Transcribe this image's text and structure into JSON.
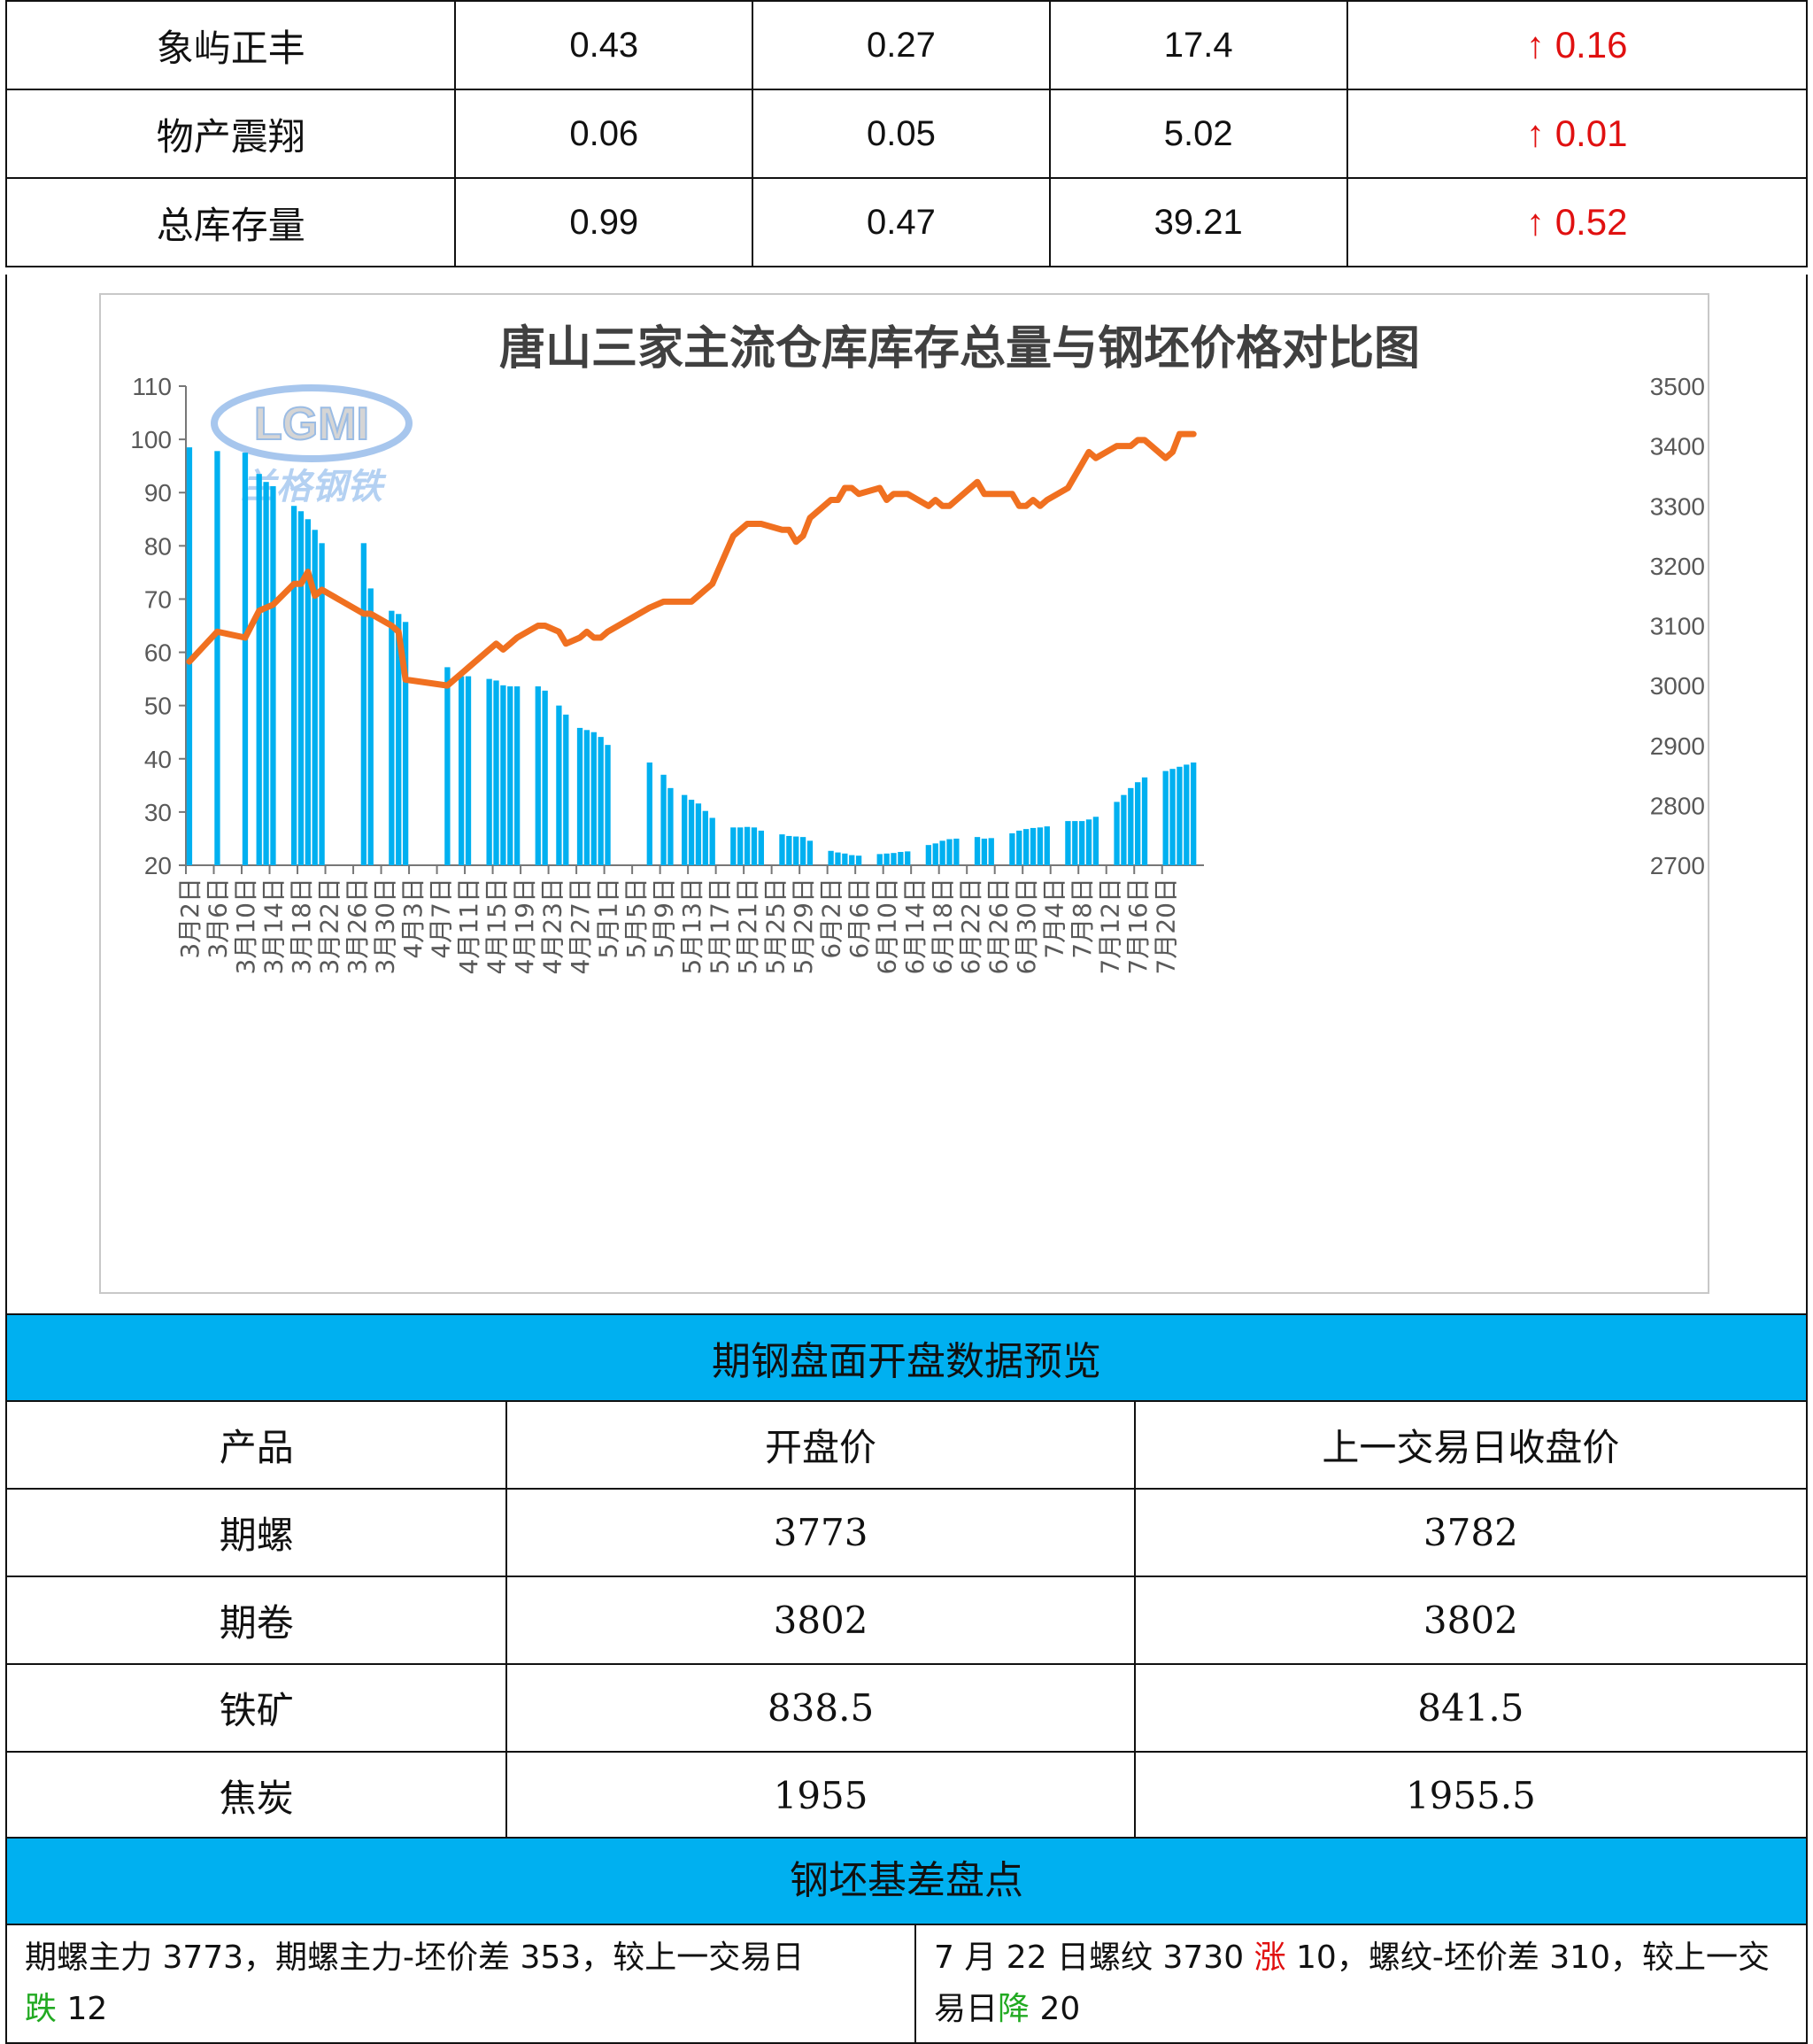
{
  "inventory_table": {
    "rows": [
      {
        "name": "象屿正丰",
        "c1": "0.43",
        "c2": "0.27",
        "c3": "17.4",
        "change": "↑ 0.16"
      },
      {
        "name": "物产震翔",
        "c1": "0.06",
        "c2": "0.05",
        "c3": "5.02",
        "change": "↑ 0.01"
      },
      {
        "name": "总库存量",
        "c1": "0.99",
        "c2": "0.47",
        "c3": "39.21",
        "change": "↑ 0.52"
      }
    ]
  },
  "logo": {
    "text": "LGMI",
    "subtext": "兰格钢铁"
  },
  "chart_data": {
    "type": "bar+line",
    "title": "唐山三家主流仓库库存总量与钢坯价格对比图",
    "y_left": {
      "min": 20,
      "max": 110,
      "ticks": [
        20,
        30,
        40,
        50,
        60,
        70,
        80,
        90,
        100,
        110
      ]
    },
    "y_right": {
      "min": 2700,
      "max": 3500,
      "ticks": [
        2700,
        2800,
        2900,
        3000,
        3100,
        3200,
        3300,
        3400,
        3500
      ]
    },
    "x_tick_labels": [
      "3月2日",
      "3月6日",
      "3月10日",
      "3月14日",
      "3月18日",
      "3月22日",
      "3月26日",
      "3月30日",
      "4月3日",
      "4月7日",
      "4月11日",
      "4月15日",
      "4月19日",
      "4月23日",
      "4月27日",
      "5月1日",
      "5月5日",
      "5月9日",
      "5月13日",
      "5月17日",
      "5月21日",
      "5月25日",
      "5月29日",
      "6月2日",
      "6月6日",
      "6月10日",
      "6月14日",
      "6月18日",
      "6月22日",
      "6月26日",
      "6月30日",
      "7月4日",
      "7月8日",
      "7月12日",
      "7月16日",
      "7月20日"
    ],
    "bar_series": {
      "color": "#00b0f0",
      "points": [
        [
          0,
          98.5
        ],
        [
          4,
          97.8
        ],
        [
          8,
          97.5
        ],
        [
          10,
          93.5
        ],
        [
          11,
          92
        ],
        [
          12,
          91.2
        ],
        [
          15,
          87.5
        ],
        [
          16,
          86.5
        ],
        [
          17,
          85
        ],
        [
          18,
          83
        ],
        [
          19,
          80.5
        ],
        [
          25,
          80.5
        ],
        [
          26,
          72
        ],
        [
          29,
          67.8
        ],
        [
          30,
          67.2
        ],
        [
          31,
          65.7
        ],
        [
          37,
          57.2
        ],
        [
          39,
          55.5
        ],
        [
          40,
          55.5
        ],
        [
          43,
          55
        ],
        [
          44,
          54.7
        ],
        [
          45,
          53.8
        ],
        [
          46,
          53.6
        ],
        [
          47,
          53.6
        ],
        [
          50,
          53.6
        ],
        [
          51,
          52.8
        ],
        [
          53,
          50
        ],
        [
          54,
          48.3
        ],
        [
          56,
          45.8
        ],
        [
          57,
          45.4
        ],
        [
          58,
          45
        ],
        [
          59,
          44.1
        ],
        [
          60,
          42.6
        ],
        [
          66,
          39.3
        ],
        [
          68,
          37
        ],
        [
          69,
          34.5
        ],
        [
          71,
          33.2
        ],
        [
          72,
          32.3
        ],
        [
          73,
          31.6
        ],
        [
          74,
          30.2
        ],
        [
          75,
          28.9
        ],
        [
          78,
          27.1
        ],
        [
          79,
          27.1
        ],
        [
          80,
          27.2
        ],
        [
          81,
          27.1
        ],
        [
          82,
          26.5
        ],
        [
          85,
          25.8
        ],
        [
          86,
          25.5
        ],
        [
          87,
          25.4
        ],
        [
          88,
          25.3
        ],
        [
          89,
          24.6
        ],
        [
          92,
          22.7
        ],
        [
          93,
          22.4
        ],
        [
          94,
          22.2
        ],
        [
          95,
          21.9
        ],
        [
          96,
          21.8
        ],
        [
          99,
          22.1
        ],
        [
          100,
          22.2
        ],
        [
          101,
          22.3
        ],
        [
          102,
          22.5
        ],
        [
          103,
          22.6
        ],
        [
          106,
          23.8
        ],
        [
          107,
          24.1
        ],
        [
          108,
          24.6
        ],
        [
          109,
          24.9
        ],
        [
          110,
          25
        ],
        [
          113,
          25.3
        ],
        [
          114,
          25
        ],
        [
          115,
          25.1
        ],
        [
          118,
          26
        ],
        [
          119,
          26.5
        ],
        [
          120,
          26.8
        ],
        [
          121,
          27
        ],
        [
          122,
          27.1
        ],
        [
          123,
          27.3
        ],
        [
          126,
          28.3
        ],
        [
          127,
          28.3
        ],
        [
          128,
          28.3
        ],
        [
          129,
          28.6
        ],
        [
          130,
          29.1
        ],
        [
          133,
          31.9
        ],
        [
          134,
          33.2
        ],
        [
          135,
          34.5
        ],
        [
          136,
          35.6
        ],
        [
          137,
          36.5
        ],
        [
          140,
          37.7
        ],
        [
          141,
          38.1
        ],
        [
          142,
          38.5
        ],
        [
          143,
          38.9
        ],
        [
          144,
          39.3
        ]
      ]
    },
    "line_series": {
      "color": "#f07020",
      "points": [
        [
          0,
          3040
        ],
        [
          4,
          3090
        ],
        [
          8,
          3080
        ],
        [
          10,
          3125
        ],
        [
          11,
          3130
        ],
        [
          12,
          3135
        ],
        [
          15,
          3170
        ],
        [
          16,
          3170
        ],
        [
          17,
          3190
        ],
        [
          18,
          3150
        ],
        [
          19,
          3160
        ],
        [
          25,
          3120
        ],
        [
          26,
          3120
        ],
        [
          29,
          3100
        ],
        [
          30,
          3090
        ],
        [
          31,
          3010
        ],
        [
          37,
          3000
        ],
        [
          39,
          3020
        ],
        [
          40,
          3030
        ],
        [
          43,
          3060
        ],
        [
          44,
          3070
        ],
        [
          45,
          3060
        ],
        [
          46,
          3070
        ],
        [
          47,
          3080
        ],
        [
          50,
          3100
        ],
        [
          51,
          3100
        ],
        [
          53,
          3090
        ],
        [
          54,
          3070
        ],
        [
          56,
          3080
        ],
        [
          57,
          3090
        ],
        [
          58,
          3080
        ],
        [
          59,
          3080
        ],
        [
          60,
          3090
        ],
        [
          66,
          3130
        ],
        [
          68,
          3140
        ],
        [
          69,
          3140
        ],
        [
          71,
          3140
        ],
        [
          72,
          3140
        ],
        [
          73,
          3150
        ],
        [
          74,
          3160
        ],
        [
          75,
          3170
        ],
        [
          78,
          3250
        ],
        [
          79,
          3260
        ],
        [
          80,
          3270
        ],
        [
          81,
          3270
        ],
        [
          82,
          3270
        ],
        [
          85,
          3260
        ],
        [
          86,
          3260
        ],
        [
          87,
          3240
        ],
        [
          88,
          3250
        ],
        [
          89,
          3280
        ],
        [
          92,
          3310
        ],
        [
          93,
          3310
        ],
        [
          94,
          3330
        ],
        [
          95,
          3330
        ],
        [
          96,
          3320
        ],
        [
          99,
          3330
        ],
        [
          100,
          3310
        ],
        [
          101,
          3320
        ],
        [
          102,
          3320
        ],
        [
          103,
          3320
        ],
        [
          106,
          3300
        ],
        [
          107,
          3310
        ],
        [
          108,
          3300
        ],
        [
          109,
          3300
        ],
        [
          110,
          3310
        ],
        [
          113,
          3340
        ],
        [
          114,
          3320
        ],
        [
          115,
          3320
        ],
        [
          118,
          3320
        ],
        [
          119,
          3300
        ],
        [
          120,
          3300
        ],
        [
          121,
          3310
        ],
        [
          122,
          3300
        ],
        [
          123,
          3310
        ],
        [
          126,
          3330
        ],
        [
          127,
          3350
        ],
        [
          128,
          3370
        ],
        [
          129,
          3390
        ],
        [
          130,
          3380
        ],
        [
          133,
          3400
        ],
        [
          134,
          3400
        ],
        [
          135,
          3400
        ],
        [
          136,
          3410
        ],
        [
          137,
          3410
        ],
        [
          140,
          3380
        ],
        [
          141,
          3390
        ],
        [
          142,
          3420
        ],
        [
          143,
          3420
        ],
        [
          144,
          3420
        ]
      ]
    },
    "x_count": 146
  },
  "futures_table": {
    "header": "期钢盘面开盘数据预览",
    "columns": [
      "产品",
      "开盘价",
      "上一交易日收盘价"
    ],
    "rows": [
      {
        "p": "期螺",
        "open": "3773",
        "prev": "3782"
      },
      {
        "p": "期卷",
        "open": "3802",
        "prev": "3802"
      },
      {
        "p": "铁矿",
        "open": "838.5",
        "prev": "841.5"
      },
      {
        "p": "焦炭",
        "open": "1955",
        "prev": "1955.5"
      }
    ]
  },
  "basis": {
    "header": "钢坯基差盘点",
    "left_a": "期螺主力 3773，期螺主力-坯价差 353，较上一交易日",
    "left_dir": "跌",
    "left_b": " 12",
    "right_a": "7 月 22 日螺纹 3730 ",
    "right_dir1": "涨",
    "right_b": " 10，螺纹-坯价差 310，较上一交易日",
    "right_dir2": "降",
    "right_c": " 20"
  }
}
